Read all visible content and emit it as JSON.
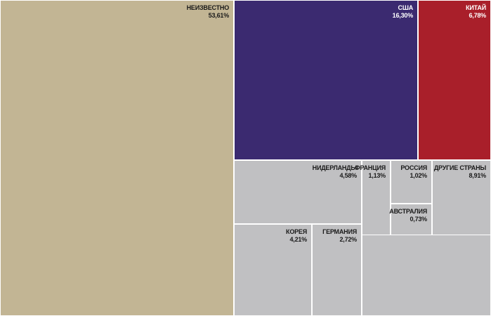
{
  "chart_data": {
    "type": "treemap",
    "colors": {
      "unknown": "#c2b594",
      "usa": "#3b2a70",
      "china": "#a91f2a",
      "other_group": "#c0c0c2",
      "light_text": "#ffffff",
      "dark_text": "#1a1a1a"
    },
    "items": [
      {
        "key": "unknown",
        "name": "НЕИЗВЕСТНО",
        "value_label": "53,61%",
        "value": 53.61
      },
      {
        "key": "usa",
        "name": "США",
        "value_label": "16,30%",
        "value": 16.3
      },
      {
        "key": "china",
        "name": "КИТАЙ",
        "value_label": "6,78%",
        "value": 6.78
      },
      {
        "key": "netherlands",
        "name": "НИДЕРЛАНДЫ",
        "value_label": "4,58%",
        "value": 4.58
      },
      {
        "key": "france",
        "name": "ФРАНЦИЯ",
        "value_label": "1,13%",
        "value": 1.13
      },
      {
        "key": "russia",
        "name": "РОССИЯ",
        "value_label": "1,02%",
        "value": 1.02
      },
      {
        "key": "other",
        "name": "ДРУГИЕ СТРАНЫ",
        "value_label": "8,91%",
        "value": 8.91
      },
      {
        "key": "australia",
        "name": "АВСТРАЛИЯ",
        "value_label": "0,73%",
        "value": 0.73
      },
      {
        "key": "korea",
        "name": "КОРЕЯ",
        "value_label": "4,21%",
        "value": 4.21
      },
      {
        "key": "germany",
        "name": "ГЕРМАНИЯ",
        "value_label": "2,72%",
        "value": 2.72
      }
    ]
  }
}
